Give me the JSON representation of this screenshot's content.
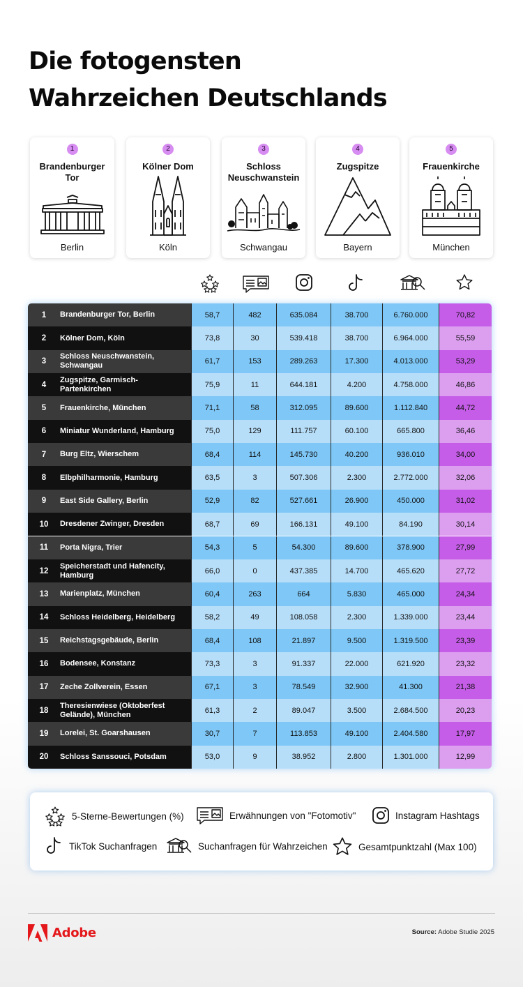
{
  "title": {
    "line1": "Die fotogensten",
    "line2": "Wahrzeichen Deutschlands"
  },
  "top5": [
    {
      "rank": "1",
      "name": "Brandenburger Tor",
      "city": "Berlin"
    },
    {
      "rank": "2",
      "name": "Kölner Dom",
      "city": "Köln"
    },
    {
      "rank": "3",
      "name": "Schloss Neuschwanstein",
      "city": "Schwangau"
    },
    {
      "rank": "4",
      "name": "Zugspitze",
      "city": "Bayern"
    },
    {
      "rank": "5",
      "name": "Frauenkirche",
      "city": "München"
    }
  ],
  "column_icons": [
    "stars-icon",
    "photo-mention-icon",
    "instagram-icon",
    "tiktok-icon",
    "landmark-search-icon",
    "star-icon"
  ],
  "colors": {
    "dark_row_a": "#3a3a3a",
    "dark_row_b": "#111111",
    "blue_a": "#7ec7f6",
    "blue_b": "#b7def9",
    "purple_a": "#c65de8",
    "purple_b": "#dc9ff0"
  },
  "table": {
    "rows": [
      {
        "rank": "1",
        "name": "Brandenburger Tor, Berlin",
        "v1": "58,7",
        "v2": "482",
        "v3": "635.084",
        "v4": "38.700",
        "v5": "6.760.000",
        "v6": "70,82"
      },
      {
        "rank": "2",
        "name": "Kölner Dom, Köln",
        "v1": "73,8",
        "v2": "30",
        "v3": "539.418",
        "v4": "38.700",
        "v5": "6.964.000",
        "v6": "55,59"
      },
      {
        "rank": "3",
        "name": "Schloss Neuschwanstein, Schwangau",
        "v1": "61,7",
        "v2": "153",
        "v3": "289.263",
        "v4": "17.300",
        "v5": "4.013.000",
        "v6": "53,29"
      },
      {
        "rank": "4",
        "name": "Zugspitze, Garmisch-Partenkirchen",
        "v1": "75,9",
        "v2": "11",
        "v3": "644.181",
        "v4": "4.200",
        "v5": "4.758.000",
        "v6": "46,86"
      },
      {
        "rank": "5",
        "name": "Frauenkirche, München",
        "v1": "71,1",
        "v2": "58",
        "v3": "312.095",
        "v4": "89.600",
        "v5": "1.112.840",
        "v6": "44,72"
      },
      {
        "rank": "6",
        "name": "Miniatur Wunderland, Hamburg",
        "v1": "75,0",
        "v2": "129",
        "v3": "111.757",
        "v4": "60.100",
        "v5": "665.800",
        "v6": "36,46"
      },
      {
        "rank": "7",
        "name": "Burg Eltz, Wierschem",
        "v1": "68,4",
        "v2": "114",
        "v3": "145.730",
        "v4": "40.200",
        "v5": "936.010",
        "v6": "34,00"
      },
      {
        "rank": "8",
        "name": "Elbphilharmonie, Hamburg",
        "v1": "63,5",
        "v2": "3",
        "v3": "507.306",
        "v4": "2.300",
        "v5": "2.772.000",
        "v6": "32,06"
      },
      {
        "rank": "9",
        "name": "East Side Gallery, Berlin",
        "v1": "52,9",
        "v2": "82",
        "v3": "527.661",
        "v4": "26.900",
        "v5": "450.000",
        "v6": "31,02"
      },
      {
        "rank": "10",
        "name": "Dresdener Zwinger, Dresden",
        "v1": "68,7",
        "v2": "69",
        "v3": "166.131",
        "v4": "49.100",
        "v5": "84.190",
        "v6": "30,14"
      },
      {
        "rank": "11",
        "name": "Porta Nigra, Trier",
        "v1": "54,3",
        "v2": "5",
        "v3": "54.300",
        "v4": "89.600",
        "v5": "378.900",
        "v6": "27,99"
      },
      {
        "rank": "12",
        "name": "Speicherstadt und Hafencity, Hamburg",
        "v1": "66,0",
        "v2": "0",
        "v3": "437.385",
        "v4": "14.700",
        "v5": "465.620",
        "v6": "27,72"
      },
      {
        "rank": "13",
        "name": "Marienplatz, München",
        "v1": "60,4",
        "v2": "263",
        "v3": "664",
        "v4": "5.830",
        "v5": "465.000",
        "v6": "24,34"
      },
      {
        "rank": "14",
        "name": "Schloss Heidelberg, Heidelberg",
        "v1": "58,2",
        "v2": "49",
        "v3": "108.058",
        "v4": "2.300",
        "v5": "1.339.000",
        "v6": "23,44"
      },
      {
        "rank": "15",
        "name": "Reichstagsgebäude, Berlin",
        "v1": "68,4",
        "v2": "108",
        "v3": "21.897",
        "v4": "9.500",
        "v5": "1.319.500",
        "v6": "23,39"
      },
      {
        "rank": "16",
        "name": "Bodensee, Konstanz",
        "v1": "73,3",
        "v2": "3",
        "v3": "91.337",
        "v4": "22.000",
        "v5": "621.920",
        "v6": "23,32"
      },
      {
        "rank": "17",
        "name": "Zeche Zollverein, Essen",
        "v1": "67,1",
        "v2": "3",
        "v3": "78.549",
        "v4": "32.900",
        "v5": "41.300",
        "v6": "21,38"
      },
      {
        "rank": "18",
        "name": "Theresienwiese (Oktoberfest Gelände), München",
        "v1": "61,3",
        "v2": "2",
        "v3": "89.047",
        "v4": "3.500",
        "v5": "2.684.500",
        "v6": "20,23"
      },
      {
        "rank": "19",
        "name": "Lorelei, St. Goarshausen",
        "v1": "30,7",
        "v2": "7",
        "v3": "113.853",
        "v4": "49.100",
        "v5": "2.404.580",
        "v6": "17,97"
      },
      {
        "rank": "20",
        "name": "Schloss Sanssouci, Potsdam",
        "v1": "53,0",
        "v2": "9",
        "v3": "38.952",
        "v4": "2.800",
        "v5": "1.301.000",
        "v6": "12,99"
      }
    ]
  },
  "legend": {
    "stars": "5-Sterne-Bewertungen (%)",
    "mentions": "Erwähnungen von \"Fotomotiv\"",
    "instagram": "Instagram Hashtags",
    "tiktok": "TikTok Suchanfragen",
    "landmark_search": "Suchanfragen für Wahrzeichen",
    "total": "Gesamtpunktzahl (Max 100)"
  },
  "footer": {
    "brand": "Adobe",
    "source_label": "Source:",
    "source_text": "Adobe Studie 2025"
  }
}
